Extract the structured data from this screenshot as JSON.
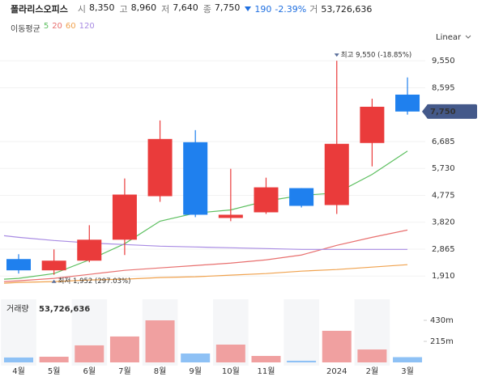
{
  "header": {
    "name": "폴라리스오피스",
    "items": [
      {
        "label": "시",
        "value": "8,350"
      },
      {
        "label": "고",
        "value": "8,960"
      },
      {
        "label": "저",
        "value": "7,640"
      },
      {
        "label": "종",
        "value": "7,750"
      }
    ],
    "change": "190",
    "change_pct": "-2.39%",
    "volume_label": "거",
    "volume": "53,726,636"
  },
  "chart_data": [
    {
      "type": "candlestick",
      "open": [
        2512,
        2111,
        2455,
        3199,
        4744,
        6660,
        3971,
        4171,
        5030,
        4429,
        6632,
        8350
      ],
      "high": [
        2684,
        2855,
        3714,
        5373,
        7433,
        7090,
        5716,
        5401,
        5030,
        9550,
        8205,
        8960
      ],
      "low": [
        1997,
        1952,
        2398,
        2655,
        4543,
        4000,
        3857,
        4114,
        4343,
        4114,
        5802,
        7640
      ],
      "close": [
        2111,
        2455,
        3199,
        4801,
        6775,
        4085,
        4085,
        5058,
        4400,
        6603,
        7919,
        7750
      ],
      "up_color": "#ea3b3b",
      "down_color": "#1f80ee",
      "last_label": "7,750",
      "scale": "Linear",
      "ylim": [
        1600,
        9900
      ],
      "yticks": [
        {
          "value": 1910,
          "label": "1,910"
        },
        {
          "value": 2865,
          "label": "2,865"
        },
        {
          "value": 3820,
          "label": "3,820"
        },
        {
          "value": 4775,
          "label": "4,775"
        },
        {
          "value": 5730,
          "label": "5,730"
        },
        {
          "value": 6685,
          "label": "6,685"
        },
        {
          "value": 8595,
          "label": "8,595"
        },
        {
          "value": 9550,
          "label": "9,550"
        }
      ],
      "legend_title": "이동평균",
      "series": [
        {
          "name": "5",
          "color": "#5cbf5f",
          "values": [
            1826,
            1997,
            2483,
            3056,
            3857,
            4143,
            4257,
            4572,
            4772,
            4858,
            5516,
            6346
          ]
        },
        {
          "name": "20",
          "color": "#e8706f",
          "values": [
            1740,
            1826,
            1968,
            2111,
            2197,
            2283,
            2369,
            2483,
            2655,
            2998,
            3284,
            3542
          ]
        },
        {
          "name": "60",
          "color": "#f0a24e",
          "values": [
            1683,
            1711,
            1768,
            1797,
            1854,
            1883,
            1940,
            1997,
            2083,
            2140,
            2226,
            2312
          ]
        },
        {
          "name": "120",
          "color": "#a88be3",
          "values": [
            3284,
            3170,
            3084,
            3027,
            2970,
            2941,
            2912,
            2884,
            2855,
            2855,
            2855,
            2855
          ]
        }
      ],
      "annotations": [
        "최고 9,550 (-18.85%)",
        "최저 1,952 (297.03%)"
      ]
    },
    {
      "type": "bar",
      "title": "거래량",
      "title_value": "53,726,636",
      "categories": [
        "4월",
        "5월",
        "6월",
        "7월",
        "8월",
        "9월",
        "10월",
        "11월",
        null,
        "2024",
        "2월",
        "3월"
      ],
      "values": [
        50000000,
        58000000,
        174000000,
        265000000,
        430000000,
        91000000,
        182000000,
        66000000,
        17000000,
        323000000,
        132000000,
        53726636
      ],
      "up_color": "#f0a0a0",
      "down_color": "#8ec1f5",
      "ylim": [
        0,
        645000000
      ],
      "yticks": [
        {
          "value": 215000000,
          "label": "215m"
        },
        {
          "value": 430000000,
          "label": "430m"
        }
      ]
    }
  ]
}
